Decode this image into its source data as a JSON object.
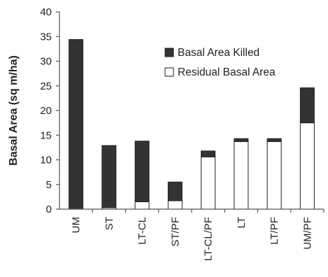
{
  "chart_data": {
    "type": "bar",
    "stacked": true,
    "categories": [
      "UM",
      "ST",
      "LT-CL",
      "ST/PF",
      "LT-CL/PF",
      "LT",
      "LT/PF",
      "UM/PF"
    ],
    "series": [
      {
        "name": "Residual Basal Area",
        "values": [
          0,
          0.3,
          1.5,
          1.7,
          10.6,
          13.7,
          13.7,
          17.5
        ],
        "color": "#ffffff"
      },
      {
        "name": "Basal Area Killed",
        "values": [
          34.4,
          12.6,
          12.3,
          3.8,
          1.2,
          0.6,
          0.6,
          7.1
        ],
        "color": "#333333"
      }
    ],
    "title": "",
    "xlabel": "",
    "ylabel": "Basal Area (sq m/ha)",
    "ylim": [
      0,
      40
    ],
    "yticks": [
      "0",
      "5",
      "10",
      "15",
      "20",
      "25",
      "30",
      "35",
      "40"
    ],
    "grid": false,
    "legend_position": "top-right"
  }
}
